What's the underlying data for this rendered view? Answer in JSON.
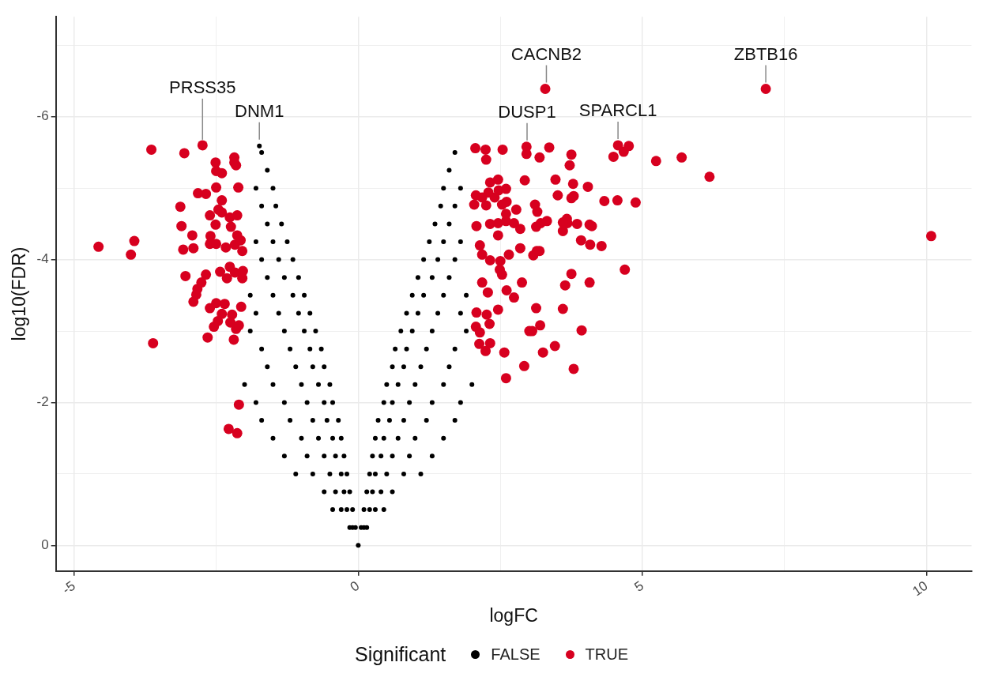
{
  "chart_data": {
    "type": "scatter",
    "xlabel": "logFC",
    "ylabel": "log10(FDR)",
    "legend_title": "Significant",
    "legend": "bottom",
    "grid": true,
    "marker": "circle",
    "xlim": [
      -5.32,
      10.79
    ],
    "xticks": [
      -5,
      {
        "value": -2.5,
        "label": null
      },
      0,
      {
        "value": 2.5,
        "label": null
      },
      5,
      {
        "value": 7.5,
        "label": null
      },
      10
    ],
    "ylim": [
      0.36,
      -7.4
    ],
    "yticks": [
      {
        "value": -7,
        "label": null
      },
      -6,
      {
        "value": -5,
        "label": null
      },
      -4,
      {
        "value": -3,
        "label": null
      },
      -2,
      {
        "value": -1,
        "label": null
      },
      0
    ],
    "annotations": [
      {
        "text": "CACNB2",
        "x": 3.31,
        "y": -6.39
      },
      {
        "text": "ZBTB16",
        "x": 7.17,
        "y": -6.39
      },
      {
        "text": "SPARCL1",
        "x": 4.57,
        "y": -5.6
      },
      {
        "text": "DUSP1",
        "x": 2.97,
        "y": -5.58
      },
      {
        "text": "DNM1",
        "x": -1.74,
        "y": -5.59
      },
      {
        "text": "PRSS35",
        "x": -2.74,
        "y": -5.59
      }
    ],
    "series": [
      {
        "name": "FALSE",
        "color": "#000000",
        "x": [
          0,
          -1.74,
          0.05,
          -0.05,
          0.1,
          -0.1,
          0.15,
          -0.15,
          0.1,
          -0.1,
          0.2,
          -0.2,
          0.3,
          -0.3,
          0.45,
          -0.45,
          0.15,
          -0.15,
          0.25,
          -0.25,
          0.4,
          -0.4,
          0.6,
          -0.6,
          0.2,
          -0.2,
          0.3,
          -0.3,
          0.5,
          -0.5,
          0.8,
          -0.8,
          1.1,
          -1.1,
          0.25,
          -0.25,
          0.4,
          -0.4,
          0.6,
          -0.6,
          0.9,
          -0.9,
          1.3,
          -1.3,
          0.3,
          -0.3,
          0.45,
          -0.45,
          0.7,
          -0.7,
          1.0,
          -1.0,
          1.5,
          -1.5,
          0.35,
          -0.35,
          0.55,
          -0.55,
          0.8,
          -0.8,
          1.2,
          -1.2,
          1.7,
          -1.7,
          0.45,
          -0.45,
          0.6,
          -0.6,
          0.9,
          -0.9,
          1.3,
          -1.3,
          1.8,
          -1.8,
          0.5,
          -0.5,
          0.7,
          -0.7,
          1.0,
          -1.0,
          1.5,
          -1.5,
          2.0,
          -2.0,
          0.6,
          -0.6,
          0.8,
          -0.8,
          1.1,
          -1.1,
          1.6,
          -1.6,
          0.65,
          -0.65,
          0.85,
          -0.85,
          1.2,
          -1.2,
          1.7,
          -1.7,
          0.75,
          -0.75,
          0.95,
          -0.95,
          1.3,
          -1.3,
          1.9,
          -1.9,
          0.85,
          -0.85,
          1.05,
          -1.05,
          1.4,
          -1.4,
          1.8,
          -1.8,
          0.95,
          -0.95,
          1.15,
          -1.15,
          1.5,
          -1.5,
          1.9,
          -1.9,
          1.05,
          -1.05,
          1.3,
          -1.3,
          1.6,
          -1.6,
          1.15,
          -1.15,
          1.4,
          -1.4,
          1.7,
          -1.7,
          1.25,
          -1.25,
          1.5,
          -1.5,
          1.8,
          -1.8,
          1.35,
          -1.35,
          1.6,
          -1.6,
          1.45,
          -1.45,
          1.7,
          -1.7,
          1.5,
          -1.5,
          1.8,
          -1.8,
          1.6,
          -1.6,
          1.7,
          -1.7
        ],
        "values": [
          0,
          -5.59,
          -0.25,
          -0.25,
          -0.25,
          -0.25,
          -0.25,
          -0.25,
          -0.5,
          -0.5,
          -0.5,
          -0.5,
          -0.5,
          -0.5,
          -0.5,
          -0.5,
          -0.75,
          -0.75,
          -0.75,
          -0.75,
          -0.75,
          -0.75,
          -0.75,
          -0.75,
          -1,
          -1,
          -1,
          -1,
          -1,
          -1,
          -1,
          -1,
          -1,
          -1,
          -1.25,
          -1.25,
          -1.25,
          -1.25,
          -1.25,
          -1.25,
          -1.25,
          -1.25,
          -1.25,
          -1.25,
          -1.5,
          -1.5,
          -1.5,
          -1.5,
          -1.5,
          -1.5,
          -1.5,
          -1.5,
          -1.5,
          -1.5,
          -1.75,
          -1.75,
          -1.75,
          -1.75,
          -1.75,
          -1.75,
          -1.75,
          -1.75,
          -1.75,
          -1.75,
          -2,
          -2,
          -2,
          -2,
          -2,
          -2,
          -2,
          -2,
          -2,
          -2,
          -2.25,
          -2.25,
          -2.25,
          -2.25,
          -2.25,
          -2.25,
          -2.25,
          -2.25,
          -2.25,
          -2.25,
          -2.5,
          -2.5,
          -2.5,
          -2.5,
          -2.5,
          -2.5,
          -2.5,
          -2.5,
          -2.75,
          -2.75,
          -2.75,
          -2.75,
          -2.75,
          -2.75,
          -2.75,
          -2.75,
          -3,
          -3,
          -3,
          -3,
          -3,
          -3,
          -3,
          -3,
          -3.25,
          -3.25,
          -3.25,
          -3.25,
          -3.25,
          -3.25,
          -3.25,
          -3.25,
          -3.5,
          -3.5,
          -3.5,
          -3.5,
          -3.5,
          -3.5,
          -3.5,
          -3.5,
          -3.75,
          -3.75,
          -3.75,
          -3.75,
          -3.75,
          -3.75,
          -4,
          -4,
          -4,
          -4,
          -4,
          -4,
          -4.25,
          -4.25,
          -4.25,
          -4.25,
          -4.25,
          -4.25,
          -4.5,
          -4.5,
          -4.5,
          -4.5,
          -4.75,
          -4.75,
          -4.75,
          -4.75,
          -5,
          -5,
          -5,
          -5,
          -5.25,
          -5.25,
          -5.5,
          -5.5
        ]
      },
      {
        "name": "TRUE",
        "color": "#d7001f",
        "x": [
          -3.64,
          -3.06,
          -2.74,
          -2.51,
          -2.5,
          -2.18,
          -2.18,
          -2.4,
          -2.15,
          -2.5,
          -2.68,
          -2.82,
          -2.4,
          -2.11,
          -3.13,
          -3.11,
          -2.51,
          -2.46,
          -2.61,
          -2.4,
          -2.26,
          -2.13,
          -2.92,
          -2.6,
          -2.24,
          -2.13,
          -2.17,
          -2.07,
          -3.08,
          -2.9,
          -2.61,
          -2.5,
          -2.33,
          -2.04,
          -3.04,
          -2.68,
          -2.26,
          -2.85,
          -2.43,
          -2.31,
          -2.17,
          -2.03,
          -2.83,
          -2.04,
          -2.5,
          -2.4,
          -2.61,
          -2.35,
          -2.22,
          -2.06,
          -2.47,
          -2.15,
          -2.54,
          -2.25,
          -2.65,
          -2.19,
          -2.1,
          -3.61,
          -3.94,
          -4.0,
          -4.57,
          -2.1,
          -2.28,
          -2.13,
          -2.9,
          -2.76,
          2.06,
          2.24,
          2.54,
          2.96,
          2.96,
          3.36,
          3.19,
          3.75,
          3.72,
          2.25,
          2.32,
          2.46,
          2.29,
          2.47,
          2.61,
          2.93,
          3.47,
          3.78,
          4.04,
          2.07,
          2.18,
          2.04,
          2.25,
          2.4,
          2.53,
          2.6,
          2.78,
          2.6,
          3.11,
          3.15,
          3.51,
          3.79,
          3.67,
          2.08,
          2.32,
          2.46,
          2.6,
          2.74,
          2.85,
          2.46,
          3.21,
          3.13,
          3.68,
          4.07,
          4.11,
          3.32,
          3.92,
          4.08,
          4.28,
          3.6,
          3.75,
          3.6,
          3.85,
          2.85,
          2.14,
          2.18,
          2.32,
          2.5,
          2.65,
          2.49,
          2.53,
          3.08,
          3.14,
          3.19,
          3.75,
          2.88,
          2.61,
          2.18,
          2.28,
          2.74,
          3.13,
          2.08,
          2.26,
          2.46,
          3.2,
          3.01,
          3.93,
          3.06,
          2.07,
          2.13,
          2.32,
          2.57,
          3.25,
          3.79,
          2.6,
          3.6,
          3.46,
          2.14,
          2.24,
          2.92,
          4.33,
          4.56,
          4.49,
          4.67,
          4.76,
          4.57,
          5.24,
          5.69,
          6.18,
          4.88,
          4.69,
          4.07,
          3.64,
          10.08,
          3.29,
          7.17,
          2.31
        ],
        "values": [
          -5.54,
          -5.49,
          -5.6,
          -5.36,
          -5.24,
          -5.43,
          -5.36,
          -5.21,
          -5.32,
          -5.01,
          -4.92,
          -4.93,
          -4.83,
          -5.01,
          -4.74,
          -4.47,
          -4.49,
          -4.7,
          -4.62,
          -4.66,
          -4.59,
          -4.62,
          -4.34,
          -4.33,
          -4.46,
          -4.34,
          -4.21,
          -4.27,
          -4.14,
          -4.16,
          -4.22,
          -4.22,
          -4.17,
          -4.12,
          -3.77,
          -3.79,
          -3.9,
          -3.51,
          -3.83,
          -3.74,
          -3.82,
          -3.84,
          -3.59,
          -3.74,
          -3.39,
          -3.24,
          -3.32,
          -3.38,
          -3.23,
          -3.34,
          -3.14,
          -3.03,
          -3.06,
          -3.12,
          -2.91,
          -2.88,
          -3.08,
          -2.83,
          -4.26,
          -4.07,
          -4.18,
          -1.97,
          -1.63,
          -1.57,
          -3.41,
          -3.68,
          -5.56,
          -5.54,
          -5.54,
          -5.58,
          -5.48,
          -5.57,
          -5.43,
          -5.47,
          -5.32,
          -5.4,
          -5.08,
          -5.12,
          -4.94,
          -4.97,
          -4.81,
          -5.11,
          -5.12,
          -5.06,
          -5.02,
          -4.9,
          -4.87,
          -4.77,
          -4.76,
          -4.87,
          -4.77,
          -4.99,
          -4.7,
          -4.64,
          -4.77,
          -4.67,
          -4.9,
          -4.89,
          -4.57,
          -4.47,
          -4.5,
          -4.51,
          -4.54,
          -4.51,
          -4.43,
          -4.34,
          -4.51,
          -4.46,
          -4.51,
          -4.49,
          -4.47,
          -4.54,
          -4.27,
          -4.21,
          -4.19,
          -4.4,
          -4.86,
          -4.52,
          -4.5,
          -4.16,
          -4.2,
          -4.07,
          -3.99,
          -3.98,
          -4.07,
          -3.86,
          -3.79,
          -4.06,
          -4.12,
          -4.12,
          -3.8,
          -3.68,
          -3.57,
          -3.68,
          -3.54,
          -3.47,
          -3.32,
          -3.26,
          -3.23,
          -3.3,
          -3.08,
          -3.0,
          -3.01,
          -3.0,
          -3.06,
          -2.82,
          -2.83,
          -2.7,
          -2.7,
          -2.47,
          -2.34,
          -3.31,
          -2.79,
          -2.98,
          -2.72,
          -2.51,
          -4.82,
          -4.83,
          -5.44,
          -5.51,
          -5.59,
          -5.6,
          -5.38,
          -5.43,
          -5.16,
          -4.8,
          -3.86,
          -3.68,
          -3.64,
          -4.33,
          -6.39,
          -6.39,
          -3.1
        ]
      }
    ]
  }
}
